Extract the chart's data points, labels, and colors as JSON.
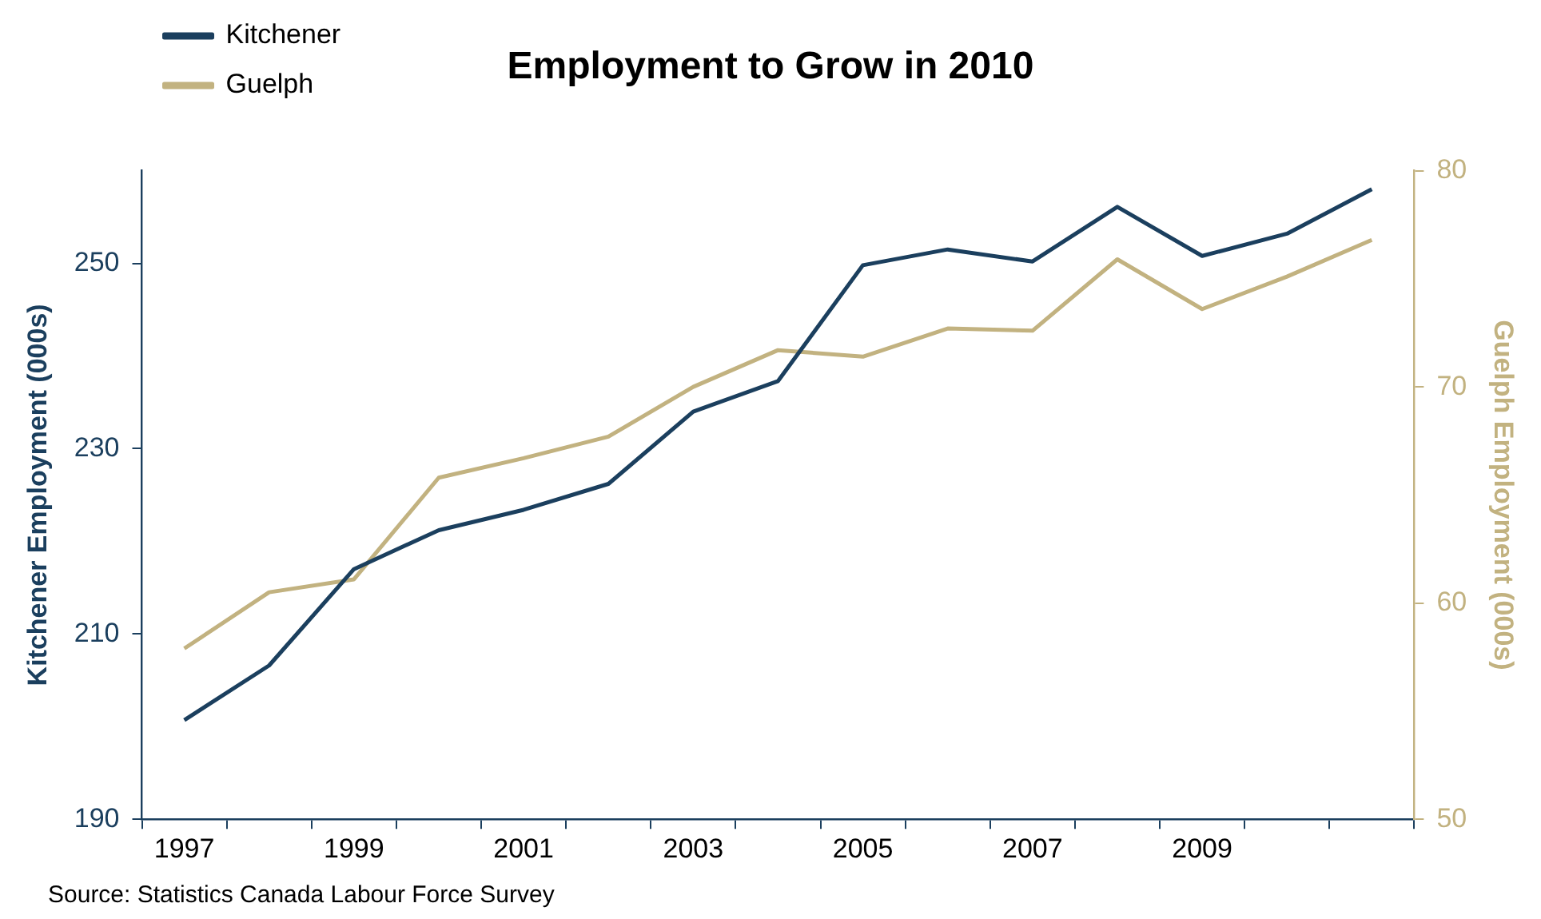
{
  "chart_data": {
    "type": "line",
    "title": "Employment to Grow in 2010",
    "ylabel": "Kitchener Employment (000s)",
    "y2label": "Guelph Employment (000s)",
    "categories": [
      "1997",
      null,
      "1999",
      null,
      "2001",
      null,
      "2003",
      null,
      "2005",
      null,
      "2007",
      null,
      "2009",
      null,
      null
    ],
    "series": [
      {
        "name": "Kitchener",
        "color": "#1b3f5e",
        "values": [
          200.7,
          206.6,
          217,
          221.2,
          223.4,
          226.2,
          234,
          237.3,
          249.8,
          251.5,
          250.2,
          256.1,
          250.8,
          253.2,
          258
        ]
      },
      {
        "name": "Guelph",
        "color": "#c2b280",
        "axis": "y2",
        "values": [
          57.9,
          60.5,
          61.1,
          65.8,
          66.7,
          67.7,
          70,
          71.7,
          71.4,
          72.7,
          72.6,
          75.9,
          73.6,
          75.1,
          76.8
        ]
      }
    ],
    "ylim": [
      190,
      260
    ],
    "yticks": [
      190,
      210,
      230,
      250
    ],
    "y2lim": [
      50,
      80
    ],
    "y2ticks": [
      50,
      60,
      70,
      80
    ],
    "grid": false,
    "legend": "top left",
    "marker": "none",
    "line_style": "solid",
    "annotations": [
      "Source: Statistics Canada Labour Force Survey"
    ]
  }
}
